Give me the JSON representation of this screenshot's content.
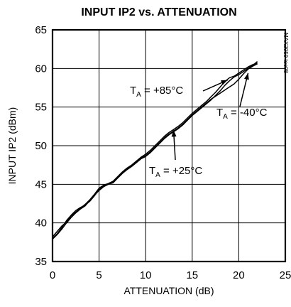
{
  "chart_data": {
    "type": "line",
    "title": "INPUT IP2 vs. ATTENUATION",
    "xlabel": "ATTENUATION (dB)",
    "ylabel": "INPUT IP2 (dBm)",
    "xlim": [
      0,
      25
    ],
    "ylim": [
      35,
      65
    ],
    "xticks": [
      "0",
      "5",
      "10",
      "15",
      "20",
      "25"
    ],
    "yticks": [
      "35",
      "40",
      "45",
      "50",
      "55",
      "60",
      "65"
    ],
    "grid": true,
    "side_code": "MAX2059 toc08",
    "series": [
      {
        "x": [
          0,
          0.5,
          1,
          1.5,
          2,
          2.5,
          3,
          3.5,
          4,
          4.5,
          5,
          5.5,
          6,
          6.5,
          7,
          7.5,
          8,
          8.5,
          9,
          9.5,
          10,
          10.5,
          11,
          11.5,
          12,
          12.5,
          13,
          13.5,
          14,
          14.5,
          15,
          15.5,
          16,
          16.5,
          17,
          17.5,
          18,
          18.5,
          19,
          19.5,
          20,
          20.5,
          21,
          21.5,
          22
        ],
        "values": [
          38.0,
          38.6,
          39.4,
          40.3,
          41.0,
          41.6,
          42.0,
          42.3,
          42.8,
          43.5,
          44.3,
          44.8,
          45.0,
          45.2,
          45.8,
          46.4,
          46.9,
          47.3,
          47.8,
          48.3,
          48.6,
          49.1,
          49.7,
          50.3,
          50.9,
          51.4,
          51.8,
          52.2,
          52.7,
          53.3,
          53.9,
          54.4,
          54.9,
          55.4,
          55.9,
          56.5,
          57.1,
          57.8,
          58.4,
          58.9,
          59.2,
          59.6,
          60.0,
          60.4,
          60.9
        ]
      },
      {
        "x": [
          0,
          0.5,
          1,
          1.5,
          2,
          2.5,
          3,
          3.5,
          4,
          4.5,
          5,
          5.5,
          6,
          6.5,
          7,
          7.5,
          8,
          8.5,
          9,
          9.5,
          10,
          10.5,
          11,
          11.5,
          12,
          12.5,
          13,
          13.5,
          14,
          14.5,
          15,
          15.5,
          16,
          16.5,
          17,
          17.5,
          18,
          18.5,
          19,
          19.5,
          20,
          20.5,
          21,
          21.5,
          22
        ],
        "values": [
          38.2,
          38.9,
          39.6,
          40.1,
          40.9,
          41.4,
          41.9,
          42.4,
          43.0,
          43.7,
          44.5,
          44.9,
          45.1,
          45.4,
          46.0,
          46.6,
          47.1,
          47.5,
          48.0,
          48.5,
          48.9,
          49.4,
          50.0,
          50.6,
          51.2,
          51.7,
          52.1,
          52.5,
          53.0,
          53.6,
          54.2,
          54.7,
          55.2,
          55.7,
          56.3,
          56.9,
          57.6,
          58.3,
          58.8,
          59.0,
          59.4,
          59.8,
          60.2,
          60.5,
          60.7
        ]
      },
      {
        "x": [
          0,
          0.5,
          1,
          1.5,
          2,
          2.5,
          3,
          3.5,
          4,
          4.5,
          5,
          5.5,
          6,
          6.5,
          7,
          7.5,
          8,
          8.5,
          9,
          9.5,
          10,
          10.5,
          11,
          11.5,
          12,
          12.5,
          13,
          13.5,
          14,
          14.5,
          15,
          15.5,
          16,
          16.5,
          17,
          17.5,
          18,
          18.5,
          19,
          19.5,
          20,
          20.5,
          21,
          21.5,
          22
        ],
        "values": [
          37.9,
          38.5,
          39.2,
          40.0,
          40.7,
          41.3,
          41.8,
          42.2,
          42.9,
          43.6,
          44.2,
          44.7,
          45.0,
          45.3,
          45.9,
          46.5,
          47.0,
          47.4,
          47.9,
          48.4,
          48.7,
          49.2,
          49.8,
          50.4,
          51.0,
          51.5,
          51.9,
          52.3,
          52.8,
          53.4,
          54.0,
          54.5,
          55.0,
          55.5,
          56.0,
          56.4,
          56.8,
          57.2,
          57.6,
          58.0,
          58.6,
          59.3,
          59.9,
          60.3,
          60.6
        ]
      }
    ],
    "annotations": [
      {
        "main": "T",
        "sub": "A",
        "text": " = +85°C",
        "arrow_to": [
          18.8,
          58.5
        ]
      },
      {
        "main": "T",
        "sub": "A",
        "text": " = -40°C",
        "arrow_to": [
          21.0,
          59.4
        ]
      },
      {
        "main": "T",
        "sub": "A",
        "text": " = +25°C",
        "arrow_to": [
          13.0,
          52.0
        ]
      }
    ]
  }
}
